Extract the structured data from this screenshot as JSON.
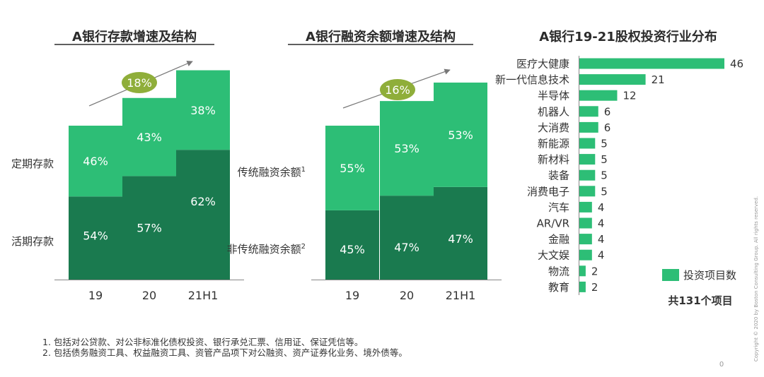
{
  "colors": {
    "light": "#2dbe76",
    "dark": "#1a7a4f",
    "badge": "#8fae3a",
    "bar": "#2dbe76"
  },
  "chart_data": [
    {
      "type": "bar",
      "stacked": true,
      "title": "A银行存款增速及结构",
      "categories": [
        "19",
        "20",
        "21H1"
      ],
      "heights": [
        100,
        118,
        136
      ],
      "series": [
        {
          "name": "活期存款",
          "values": [
            54,
            57,
            62
          ]
        },
        {
          "name": "定期存款",
          "values": [
            46,
            43,
            38
          ]
        }
      ],
      "labels": {
        "bottom": "活期存款",
        "top": "定期存款"
      },
      "growth_badge": "18%"
    },
    {
      "type": "bar",
      "stacked": true,
      "title": "A银行融资余额增速及结构",
      "categories": [
        "19",
        "20",
        "21H1"
      ],
      "heights": [
        100,
        116,
        128
      ],
      "series": [
        {
          "name": "非传统融资余额",
          "values": [
            45,
            47,
            47
          ]
        },
        {
          "name": "传统融资余额",
          "values": [
            55,
            53,
            53
          ]
        }
      ],
      "labels": {
        "bottom": "非传统融资余额",
        "bottom_sup": "2",
        "top": "传统融资余额",
        "top_sup": "1"
      },
      "growth_badge": "16%"
    },
    {
      "type": "bar",
      "orientation": "horizontal",
      "title": "A银行19-21股权投资行业分布",
      "categories": [
        "医疗大健康",
        "新一代信息技术",
        "半导体",
        "机器人",
        "大消费",
        "新能源",
        "新材料",
        "装备",
        "消费电子",
        "汽车",
        "AR/VR",
        "金融",
        "大文娱",
        "物流",
        "教育"
      ],
      "values": [
        46,
        21,
        12,
        6,
        6,
        5,
        5,
        5,
        5,
        4,
        4,
        4,
        4,
        2,
        2
      ],
      "legend": "投资项目数",
      "total": "共131个项目"
    }
  ],
  "footnotes": [
    "1. 包括对公贷款、对公非标准化债权投资、银行承兑汇票、信用证、保证凭信等。",
    "2. 包括债务融资工具、权益融资工具、资管产品项下对公融资、资产证券化业务、境外债等。"
  ],
  "page_number": "0",
  "copyright": "Copyright © 2020 by Boston Consulting Group. All rights reserved."
}
